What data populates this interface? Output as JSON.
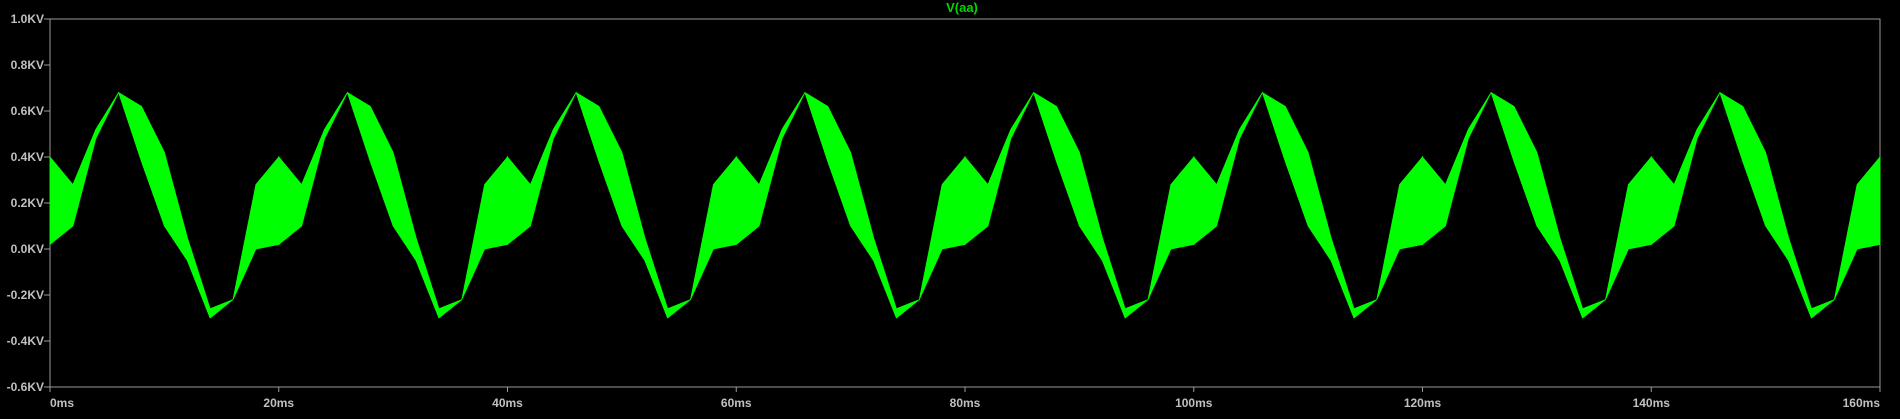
{
  "chart_data": {
    "type": "line",
    "title": "V(aa)",
    "xlabel": "",
    "ylabel": "",
    "xlim": [
      0,
      160
    ],
    "ylim": [
      -0.6,
      1.0
    ],
    "x_unit": "ms",
    "y_unit": "KV",
    "x_ticks": [
      "0ms",
      "20ms",
      "40ms",
      "60ms",
      "80ms",
      "100ms",
      "120ms",
      "140ms",
      "160ms"
    ],
    "y_ticks": [
      "1.0KV",
      "0.8KV",
      "0.6KV",
      "0.4KV",
      "0.2KV",
      "0.0KV",
      "-0.2KV",
      "-0.4KV",
      "-0.6KV"
    ],
    "x_tick_values": [
      0,
      20,
      40,
      60,
      80,
      100,
      120,
      140,
      160
    ],
    "y_tick_values": [
      1.0,
      0.8,
      0.6,
      0.4,
      0.2,
      0.0,
      -0.2,
      -0.4,
      -0.6
    ],
    "grid": false,
    "series": [
      {
        "name": "V(aa)",
        "color": "#00ff00",
        "period_ms": 20,
        "waveform": {
          "x": [
            0,
            2,
            4,
            6,
            8,
            10,
            12,
            14,
            16,
            18,
            20
          ],
          "y_upper": [
            0.4,
            0.28,
            0.52,
            0.68,
            0.62,
            0.42,
            0.05,
            -0.26,
            -0.22,
            0.28,
            0.4
          ],
          "y_lower": [
            0.02,
            0.1,
            0.48,
            0.68,
            0.38,
            0.1,
            -0.05,
            -0.3,
            -0.22,
            0.0,
            0.02
          ]
        },
        "annotations": {
          "peak_max": 0.68,
          "trough_min": -0.3
        }
      }
    ]
  }
}
